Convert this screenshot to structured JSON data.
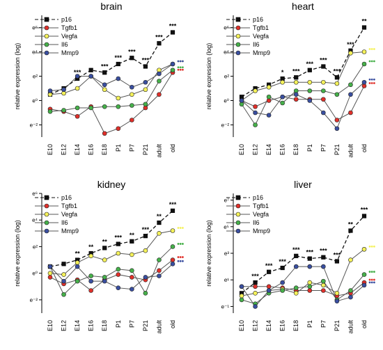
{
  "chart_data": [
    {
      "type": "line",
      "title": "brain",
      "ylabel": "relative expression (log)",
      "y_tick_labels": [
        "e⁶",
        "e⁴",
        "e²",
        "e⁰",
        "e⁻²"
      ],
      "y_ticks": [
        6,
        4,
        2,
        0,
        -2
      ],
      "ylim": [
        -3,
        7
      ],
      "categories": [
        "E10",
        "E12",
        "E14",
        "E16",
        "E18",
        "P1",
        "P7",
        "P21",
        "adult",
        "old"
      ],
      "series": [
        {
          "name": "p16",
          "values": [
            0.5,
            1.0,
            1.8,
            2.5,
            2.3,
            3.0,
            3.5,
            2.8,
            4.7,
            5.6
          ]
        },
        {
          "name": "Tgfb1",
          "values": [
            -0.7,
            -0.9,
            -1.3,
            -0.5,
            -2.7,
            -2.3,
            -1.6,
            -0.6,
            0.5,
            2.3
          ]
        },
        {
          "name": "Vegfa",
          "values": [
            0.5,
            0.6,
            1.0,
            2.0,
            0.9,
            0.2,
            0.5,
            0.9,
            2.5,
            3.0
          ]
        },
        {
          "name": "Il6",
          "values": [
            -0.9,
            -0.8,
            -0.6,
            -0.6,
            -0.5,
            -0.5,
            -0.4,
            -0.3,
            1.6,
            2.5
          ]
        },
        {
          "name": "Mmp9",
          "values": [
            0.8,
            0.9,
            2.0,
            2.0,
            1.3,
            1.8,
            1.1,
            1.5,
            2.2,
            3.0
          ]
        }
      ],
      "annotations": [
        {
          "category": "E14",
          "text": "***"
        },
        {
          "category": "E18",
          "text": "***"
        },
        {
          "category": "P1",
          "text": "***"
        },
        {
          "category": "P7",
          "text": "***"
        },
        {
          "category": "P21",
          "text": "***"
        },
        {
          "category": "adult",
          "text": "***"
        },
        {
          "category": "old",
          "text": "***"
        }
      ]
    },
    {
      "type": "line",
      "title": "heart",
      "ylabel": "relative expression (log)",
      "y_tick_labels": [
        "e⁶",
        "e⁴",
        "e²",
        "e⁰",
        "e⁻²"
      ],
      "y_ticks": [
        6,
        4,
        2,
        0,
        -2
      ],
      "ylim": [
        -3,
        7
      ],
      "categories": [
        "E10",
        "E12",
        "E14",
        "E16",
        "E18",
        "P1",
        "P7",
        "P21",
        "adult",
        "old"
      ],
      "series": [
        {
          "name": "p16",
          "values": [
            0.3,
            1.0,
            1.3,
            1.8,
            1.9,
            2.5,
            2.8,
            1.9,
            4.1,
            6.0
          ]
        },
        {
          "name": "Tgfb1",
          "values": [
            0.0,
            -0.5,
            0.0,
            0.3,
            0.1,
            0.1,
            0.1,
            -1.6,
            -1.0,
            1.2
          ]
        },
        {
          "name": "Vegfa",
          "values": [
            0.0,
            0.8,
            1.1,
            1.5,
            1.5,
            1.5,
            1.5,
            1.4,
            3.9,
            4.0
          ]
        },
        {
          "name": "Il6",
          "values": [
            -0.3,
            -2.0,
            0.3,
            -0.2,
            0.8,
            0.8,
            0.8,
            0.5,
            1.3,
            3.0
          ]
        },
        {
          "name": "Mmp9",
          "values": [
            0.0,
            -1.0,
            -1.2,
            0.3,
            0.5,
            0.0,
            -1.0,
            -2.3,
            0.5,
            1.5
          ]
        }
      ],
      "annotations": [
        {
          "category": "E16",
          "text": "*"
        },
        {
          "category": "E18",
          "text": "***"
        },
        {
          "category": "P1",
          "text": "***"
        },
        {
          "category": "P7",
          "text": "***"
        },
        {
          "category": "P21",
          "text": "***"
        },
        {
          "category": "adult",
          "text": "***"
        },
        {
          "category": "old",
          "text": "**"
        }
      ]
    },
    {
      "type": "line",
      "title": "kidney",
      "ylabel": "relative expression (log)",
      "y_tick_labels": [
        "e⁶",
        "e⁴",
        "e²",
        "e⁰",
        "e⁻²"
      ],
      "y_ticks": [
        6,
        4,
        2,
        0,
        -2
      ],
      "ylim": [
        -3,
        6
      ],
      "categories": [
        "E10",
        "E12",
        "E14",
        "E16",
        "E18",
        "P1",
        "P7",
        "P21",
        "adult",
        "old"
      ],
      "series": [
        {
          "name": "p16",
          "values": [
            0.5,
            0.7,
            1.0,
            1.5,
            1.9,
            2.2,
            2.4,
            2.8,
            3.8,
            4.7
          ]
        },
        {
          "name": "Tgfb1",
          "values": [
            -0.3,
            -0.8,
            -0.5,
            -1.3,
            -0.5,
            -0.1,
            -0.3,
            -0.5,
            0.2,
            1.0
          ]
        },
        {
          "name": "Vegfa",
          "values": [
            0.0,
            -0.1,
            0.8,
            1.3,
            1.0,
            1.5,
            1.4,
            1.7,
            3.0,
            3.2
          ]
        },
        {
          "name": "Il6",
          "values": [
            0.5,
            -1.6,
            -0.6,
            -0.2,
            -0.3,
            0.3,
            0.2,
            -1.5,
            1.0,
            2.0
          ]
        },
        {
          "name": "Mmp9",
          "values": [
            0.5,
            -0.6,
            0.5,
            -0.6,
            -0.6,
            -1.1,
            -1.2,
            -0.3,
            -0.2,
            0.7
          ]
        }
      ],
      "annotations": [
        {
          "category": "E14",
          "text": "**"
        },
        {
          "category": "E16",
          "text": "**"
        },
        {
          "category": "E18",
          "text": "**"
        },
        {
          "category": "P1",
          "text": "***"
        },
        {
          "category": "P7",
          "text": "**"
        },
        {
          "category": "P21",
          "text": "***"
        },
        {
          "category": "adult",
          "text": "**"
        },
        {
          "category": "old",
          "text": "***"
        }
      ]
    },
    {
      "type": "line",
      "title": "liver",
      "ylabel": "relative expression (log)",
      "y_tick_labels": [
        "e⁷",
        "e⁵",
        "e³",
        "e¹",
        "e⁻¹"
      ],
      "y_ticks": [
        7,
        5,
        3,
        1,
        -1
      ],
      "ylim": [
        -1.5,
        7.5
      ],
      "categories": [
        "E10",
        "E12",
        "E14",
        "E16",
        "E18",
        "P1",
        "P7",
        "P21",
        "adult",
        "old"
      ],
      "series": [
        {
          "name": "p16",
          "values": [
            0.0,
            0.8,
            1.6,
            1.9,
            2.8,
            2.6,
            2.7,
            2.4,
            4.7,
            5.8
          ]
        },
        {
          "name": "Tgfb1",
          "values": [
            0.5,
            0.5,
            0.5,
            0.4,
            0.2,
            0.2,
            0.2,
            -0.2,
            0.0,
            0.8
          ]
        },
        {
          "name": "Vegfa",
          "values": [
            -0.2,
            0.0,
            0.2,
            0.3,
            0.0,
            0.8,
            0.6,
            0.0,
            2.5,
            3.3
          ]
        },
        {
          "name": "Il6",
          "values": [
            -0.5,
            -0.8,
            0.0,
            0.2,
            0.4,
            0.5,
            0.9,
            -0.5,
            0.2,
            1.4
          ]
        },
        {
          "name": "Mmp9",
          "values": [
            0.5,
            -1.0,
            0.2,
            0.8,
            2.0,
            2.0,
            2.0,
            -0.6,
            -0.3,
            0.6
          ]
        }
      ],
      "annotations": [
        {
          "category": "E12",
          "text": "***"
        },
        {
          "category": "E14",
          "text": "***"
        },
        {
          "category": "E16",
          "text": "***"
        },
        {
          "category": "E18",
          "text": "***"
        },
        {
          "category": "P1",
          "text": "***"
        },
        {
          "category": "P7",
          "text": "***"
        },
        {
          "category": "P21",
          "text": "***"
        },
        {
          "category": "adult",
          "text": "**"
        },
        {
          "category": "old",
          "text": "***"
        }
      ]
    }
  ],
  "styles": {
    "p16": {
      "fill": "#111111",
      "line": "#111111",
      "dash": true,
      "marker": "square"
    },
    "Tgfb1": {
      "fill": "#e0302a",
      "line": "#555555",
      "dash": false,
      "marker": "circle"
    },
    "Vegfa": {
      "fill": "#f4f15a",
      "line": "#555555",
      "dash": false,
      "marker": "circle"
    },
    "Il6": {
      "fill": "#46b04a",
      "line": "#555555",
      "dash": false,
      "marker": "circle"
    },
    "Mmp9": {
      "fill": "#3a4fa0",
      "line": "#555555",
      "dash": false,
      "marker": "circle"
    }
  }
}
